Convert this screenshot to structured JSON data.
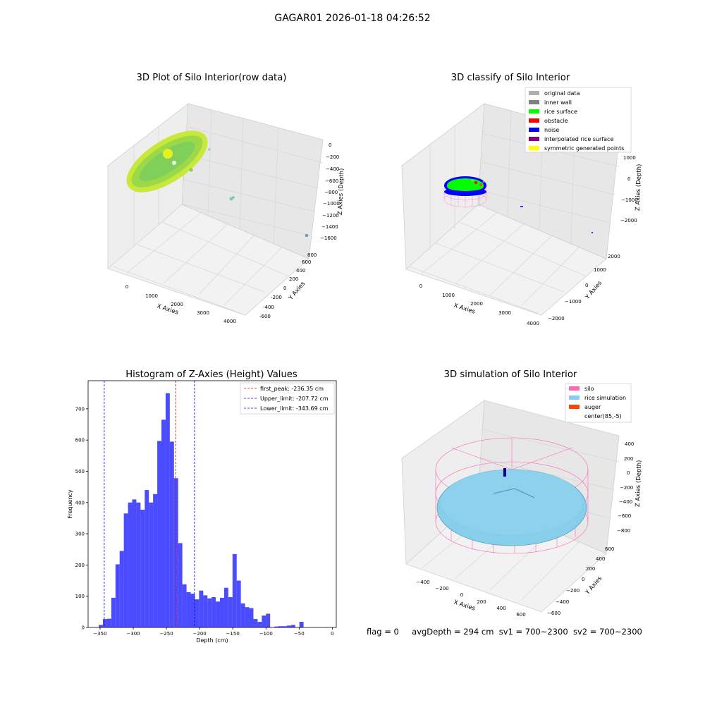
{
  "suptitle": "GAGAR01 2026-01-18 04:26:52",
  "panels": {
    "raw": {
      "title": "3D Plot of Silo Interior(row data)",
      "xlabel": "X Axies",
      "ylabel": "Y Axies",
      "zlabel": "Z Axies (Depth)",
      "xticks": [
        "0",
        "1000",
        "2000",
        "3000",
        "4000"
      ],
      "yticks": [
        "-600",
        "-400",
        "-200",
        "0",
        "200",
        "400",
        "600",
        "800"
      ],
      "zticks": [
        "0",
        "−200",
        "−400",
        "−600",
        "−800",
        "−1000",
        "−1200",
        "−1400",
        "−1600"
      ]
    },
    "classify": {
      "title": "3D classify of Silo Interior",
      "xlabel": "X Axies",
      "ylabel": "Y Axies",
      "zlabel": "Z Axies (Depth)",
      "xticks": [
        "0",
        "1000",
        "2000",
        "3000",
        "4000"
      ],
      "yticks": [
        "−2000",
        "−1000",
        "0",
        "1000",
        "2000"
      ],
      "zticks": [
        "1000",
        "0",
        "−1000",
        "−2000"
      ],
      "legend": [
        {
          "label": "original data",
          "color": "#b0b0b0"
        },
        {
          "label": "inner wall",
          "color": "#808080"
        },
        {
          "label": "rice surface",
          "color": "#00ff00"
        },
        {
          "label": "obstacle",
          "color": "#ff0000"
        },
        {
          "label": "noise",
          "color": "#0000ff"
        },
        {
          "label": "interpolated rice surface",
          "color": "#800080"
        },
        {
          "label": "symmetric generated points",
          "color": "#ffff00"
        }
      ]
    },
    "simulation": {
      "title": "3D simulation of Silo Interior",
      "xlabel": "X Axies",
      "ylabel": "Y Axies",
      "zlabel": "Z Axies (Depth)",
      "xticks": [
        "−400",
        "−200",
        "0",
        "200",
        "400",
        "600"
      ],
      "yticks": [
        "−600",
        "−400",
        "−200",
        "0",
        "200",
        "400",
        "600"
      ],
      "zticks": [
        "400",
        "200",
        "0",
        "−200",
        "−400",
        "−600",
        "−800"
      ],
      "legend": [
        {
          "label": "silo",
          "color": "#ff69b4"
        },
        {
          "label": "rice simulation",
          "color": "#87ceeb"
        },
        {
          "label": "auger",
          "color": "#ff4500"
        },
        {
          "label": "center(85,-5)",
          "color": "#ffffff"
        }
      ]
    }
  },
  "chart_data": {
    "type": "bar",
    "title": "Histogram of Z-Axies (Height) Values",
    "xlabel": "Depth (cm)",
    "ylabel": "Frequency",
    "xlim": [
      -368,
      6
    ],
    "ylim": [
      0,
      790
    ],
    "xticks": [
      -350,
      -300,
      -250,
      -200,
      -150,
      -100,
      -50,
      0
    ],
    "yticks": [
      0,
      100,
      200,
      300,
      400,
      500,
      600,
      700
    ],
    "bin_width": 6.3,
    "bin_edges_start": -352,
    "color": "#0000ff",
    "counts": [
      8,
      27,
      28,
      95,
      202,
      245,
      365,
      400,
      410,
      400,
      377,
      440,
      400,
      427,
      597,
      665,
      750,
      595,
      478,
      270,
      138,
      113,
      108,
      90,
      118,
      103,
      93,
      97,
      83,
      95,
      127,
      97,
      235,
      150,
      77,
      65,
      62,
      27,
      18,
      38,
      44,
      0,
      3,
      4,
      4,
      6,
      8,
      0,
      18
    ],
    "vlines": [
      {
        "label": "first_peak: -236.35 cm",
        "value": -236.35,
        "color": "#ff0000"
      },
      {
        "label": "Upper_limit: -207.72 cm",
        "value": -207.72,
        "color": "#0000ff"
      },
      {
        "label": "Lower_limit: -343.69 cm",
        "value": -343.69,
        "color": "#0000ff"
      }
    ],
    "legend_position": "top-right"
  },
  "footer": {
    "flag": "flag = 0",
    "avg": "avgDepth = 294 cm",
    "sv1": "sv1 = 700~2300",
    "sv2": "sv2 = 700~2300"
  }
}
